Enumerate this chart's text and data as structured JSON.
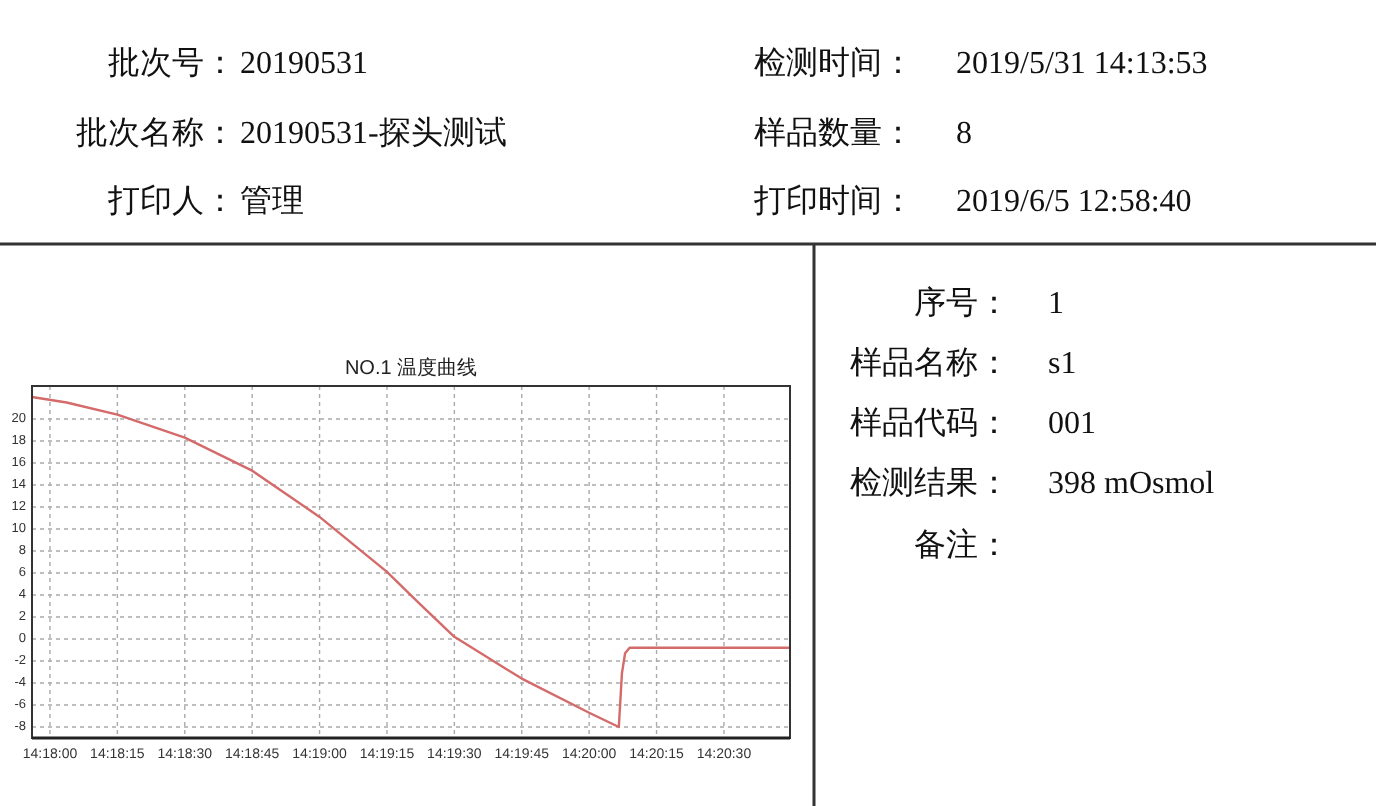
{
  "chart_data": {
    "type": "line",
    "title": "NO.1 温度曲线",
    "x": [
      14.298889,
      14.301028,
      14.304167,
      14.308333,
      14.3125,
      14.316667,
      14.320833,
      14.322861,
      14.325,
      14.329167,
      14.333333,
      14.335167,
      14.335361,
      14.335556,
      14.335833,
      14.34575
    ],
    "series": [
      {
        "color": "#d46a6a",
        "values": [
          22.0,
          21.5,
          20.4,
          18.3,
          15.3,
          11.1,
          6.1,
          3.2,
          0.2,
          -3.6,
          -6.7,
          -8.0,
          -3.1,
          -1.3,
          -0.8,
          -0.8
        ]
      }
    ],
    "xlim": [
      14.298889,
      14.34575
    ],
    "xticks": [
      {
        "value": 14.3,
        "label": "14:18:00"
      },
      {
        "value": 14.304167,
        "label": "14:18:15"
      },
      {
        "value": 14.308333,
        "label": "14:18:30"
      },
      {
        "value": 14.3125,
        "label": "14:18:45"
      },
      {
        "value": 14.316667,
        "label": "14:19:00"
      },
      {
        "value": 14.320833,
        "label": "14:19:15"
      },
      {
        "value": 14.325,
        "label": "14:19:30"
      },
      {
        "value": 14.329167,
        "label": "14:19:45"
      },
      {
        "value": 14.333333,
        "label": "14:20:00"
      },
      {
        "value": 14.3375,
        "label": "14:20:15"
      },
      {
        "value": 14.341667,
        "label": "14:20:30"
      }
    ],
    "ylim": [
      -9,
      23
    ],
    "yticks": [
      -8,
      -6,
      -4,
      -2,
      0,
      2,
      4,
      6,
      8,
      10,
      12,
      14,
      16,
      18,
      20
    ],
    "grid": true,
    "line_style": "solid",
    "marker": "none",
    "annotations": [
      "批次号：",
      "20190531",
      "检测时间：",
      "2019/5/31 14:13:53",
      "批次名称：",
      "20190531-探头测试",
      "样品数量：",
      "8",
      "打印人：",
      "管理",
      "打印时间：",
      "2019/6/5 12:58:40",
      "序号：",
      "1",
      "样品名称：",
      "s1",
      "样品代码：",
      "001",
      "检测结果：",
      "398 mOsmol",
      "备注："
    ]
  }
}
